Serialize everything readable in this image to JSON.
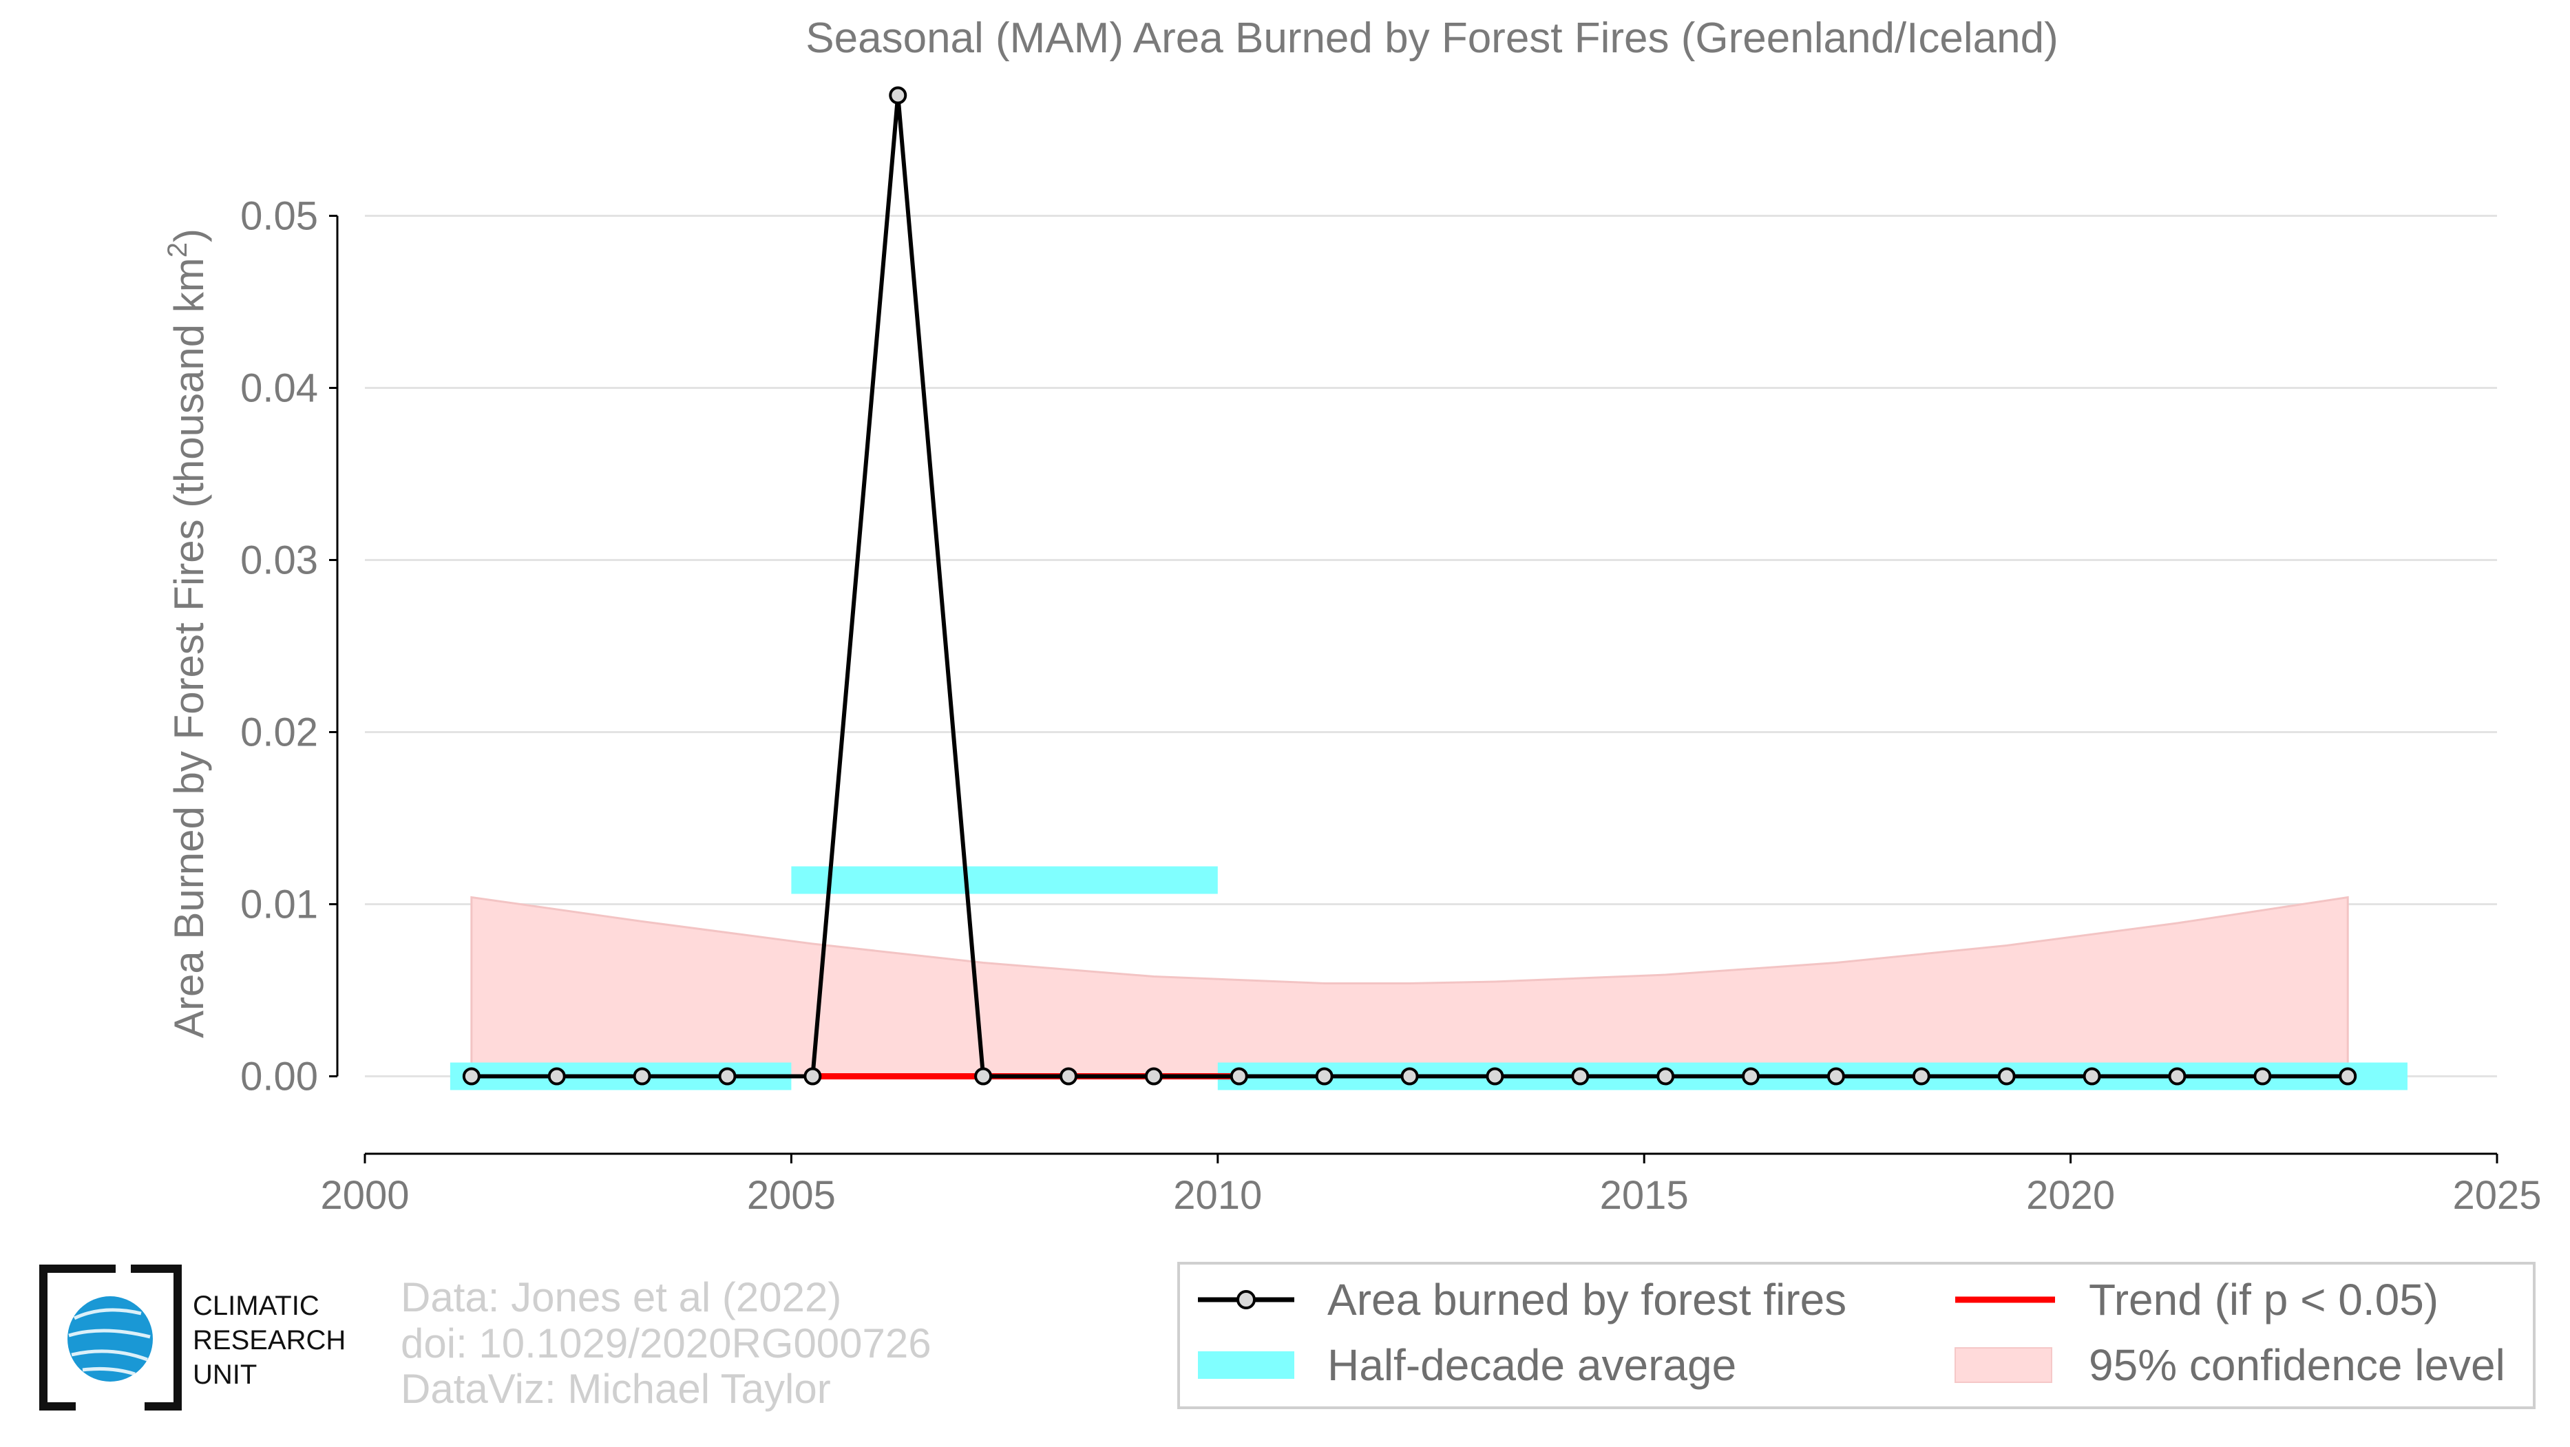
{
  "chart_data": {
    "type": "line",
    "title": "Seasonal (MAM) Area Burned by Forest Fires (Greenland/Iceland)",
    "ylabel_main": "Area Burned by Forest Fires (thousand km",
    "ylabel_sup": "2",
    "ylabel_end": ")",
    "xlabel": "",
    "xlim": [
      2000,
      2025
    ],
    "ylim": [
      -0.0045,
      0.0575
    ],
    "x_ticks": [
      2000,
      2005,
      2010,
      2015,
      2020,
      2025
    ],
    "y_ticks": [
      0.0,
      0.01,
      0.02,
      0.03,
      0.04,
      0.05
    ],
    "y_tick_labels": [
      "0.00",
      "0.01",
      "0.02",
      "0.03",
      "0.04",
      "0.05"
    ],
    "grid": true,
    "series": [
      {
        "name": "Area burned by forest fires",
        "color": "#000000",
        "x": [
          2001.25,
          2002.25,
          2003.25,
          2004.25,
          2005.25,
          2006.25,
          2007.25,
          2008.25,
          2009.25,
          2010.25,
          2011.25,
          2012.25,
          2013.25,
          2014.25,
          2015.25,
          2016.25,
          2017.25,
          2018.25,
          2019.25,
          2020.25,
          2021.25,
          2022.25,
          2023.25
        ],
        "values": [
          0,
          0,
          0,
          0,
          0,
          0.057,
          0,
          0,
          0,
          0,
          0,
          0,
          0,
          0,
          0,
          0,
          0,
          0,
          0,
          0,
          0,
          0,
          0
        ]
      }
    ],
    "half_decade_average": {
      "name": "Half-decade average",
      "color": "#80ffff",
      "segments": [
        {
          "x0": 2001.0,
          "x1": 2005.0,
          "y": 0.0
        },
        {
          "x0": 2005.0,
          "x1": 2010.0,
          "y": 0.0114
        },
        {
          "x0": 2010.0,
          "x1": 2023.95,
          "y": 0.0
        }
      ]
    },
    "trend": {
      "name": "Trend (if p < 0.05)",
      "color": "#ff0000",
      "x0": 2005.25,
      "x1": 2010.25,
      "y": 0.0
    },
    "confidence": {
      "name": "95% confidence level",
      "color": "#ffdada",
      "x": [
        2001.25,
        2003.25,
        2005.25,
        2007.25,
        2009.25,
        2011.25,
        2012.25,
        2013.25,
        2015.25,
        2017.25,
        2019.25,
        2021.25,
        2023.25
      ],
      "upper": [
        0.0104,
        0.009,
        0.0077,
        0.0066,
        0.0058,
        0.0054,
        0.0054,
        0.0055,
        0.0059,
        0.0066,
        0.0076,
        0.0089,
        0.0104
      ],
      "lower": [
        0,
        0,
        0,
        0,
        0,
        0,
        0,
        0,
        0,
        0,
        0,
        0,
        0
      ]
    }
  },
  "credits": {
    "line1": "Data: Jones et al (2022)",
    "line2": "doi: 10.1029/2020RG000726",
    "line3": "DataViz: Michael Taylor"
  },
  "logo": {
    "line1": "CLIMATIC",
    "line2": "RESEARCH",
    "line3": "UNIT"
  },
  "legend": {
    "item1": "Area burned by forest fires",
    "item2": "Trend (if p < 0.05)",
    "item3": "Half-decade average",
    "item4": "95% confidence level"
  }
}
